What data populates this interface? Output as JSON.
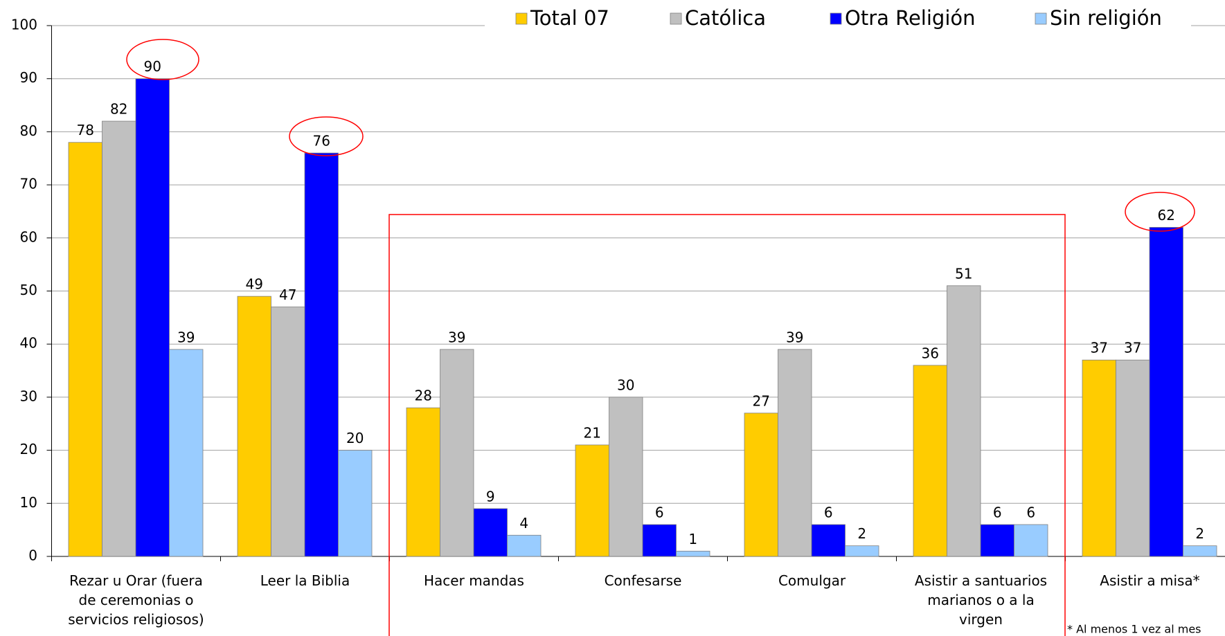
{
  "chart_data": {
    "type": "bar",
    "categories": [
      [
        "Rezar u Orar (fuera",
        "de ceremonias o",
        "servicios religiosos)"
      ],
      [
        "Leer la Biblia"
      ],
      [
        "Hacer mandas"
      ],
      [
        "Confesarse"
      ],
      [
        "Comulgar"
      ],
      [
        "Asistir a santuarios",
        "marianos o a la",
        "virgen"
      ],
      [
        "Asistir a misa*"
      ]
    ],
    "series": [
      {
        "name": "Total 07",
        "color": "#FFCC00",
        "values": [
          78,
          49,
          28,
          21,
          27,
          36,
          37
        ]
      },
      {
        "name": "Católica",
        "color": "#C0C0C0",
        "values": [
          82,
          47,
          39,
          30,
          39,
          51,
          37
        ]
      },
      {
        "name": "Otra Religión",
        "color": "#0000FF",
        "values": [
          90,
          76,
          9,
          6,
          6,
          6,
          62
        ]
      },
      {
        "name": "Sin religión",
        "color": "#99CCFF",
        "values": [
          39,
          20,
          4,
          1,
          2,
          6,
          2
        ]
      }
    ],
    "ylim": [
      0,
      100
    ],
    "yticks": [
      0,
      10,
      20,
      30,
      40,
      50,
      60,
      70,
      80,
      90,
      100
    ],
    "grid": true,
    "legend": "top",
    "annotations": [
      "* Al menos 1 vez al mes"
    ]
  }
}
